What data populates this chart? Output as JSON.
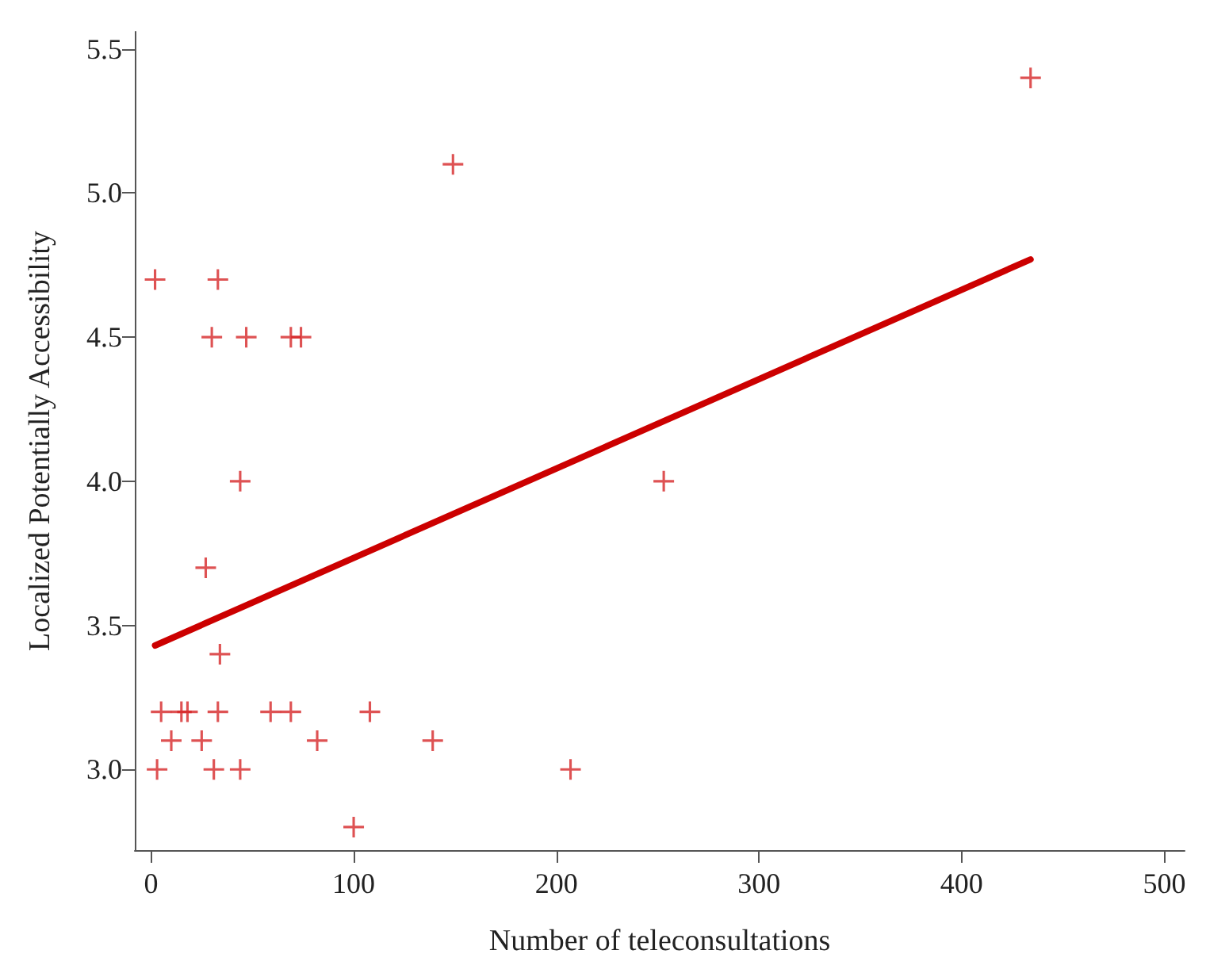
{
  "chart_data": {
    "type": "scatter",
    "xlabel": "Number of teleconsultations",
    "ylabel": "Localized Potentially Accessibility",
    "xlim": [
      -8,
      510
    ],
    "ylim": [
      2.72,
      5.56
    ],
    "xticks": [
      0,
      100,
      200,
      300,
      400,
      500
    ],
    "yticks": [
      {
        "value": 3,
        "label": "3.0"
      },
      {
        "value": 3.5,
        "label": "3.5"
      },
      {
        "value": 4,
        "label": "4.0"
      },
      {
        "value": 4.5,
        "label": "4.5"
      },
      {
        "value": 5,
        "label": "5.0"
      },
      {
        "value": 5.5,
        "label": "5.5"
      }
    ],
    "grid": false,
    "marker": "cross",
    "series": [
      {
        "color": "#d62728",
        "x": [
          2,
          33,
          30,
          47,
          69,
          74,
          149,
          434,
          44,
          253,
          27,
          34,
          5,
          15,
          18,
          33,
          59,
          69,
          108,
          10,
          25,
          82,
          139,
          3,
          31,
          44,
          207,
          100
        ],
        "values": [
          4.7,
          4.7,
          4.5,
          4.5,
          4.5,
          4.5,
          5.1,
          5.4,
          4.0,
          4.0,
          3.7,
          3.4,
          3.2,
          3.2,
          3.2,
          3.2,
          3.2,
          3.2,
          3.2,
          3.1,
          3.1,
          3.1,
          3.1,
          3.0,
          3.0,
          3.0,
          3.0,
          2.8
        ]
      },
      {
        "type": "line",
        "color": "#cc0000",
        "marker": "none",
        "x": [
          2,
          434
        ],
        "values": [
          3.43,
          4.77
        ]
      }
    ]
  }
}
